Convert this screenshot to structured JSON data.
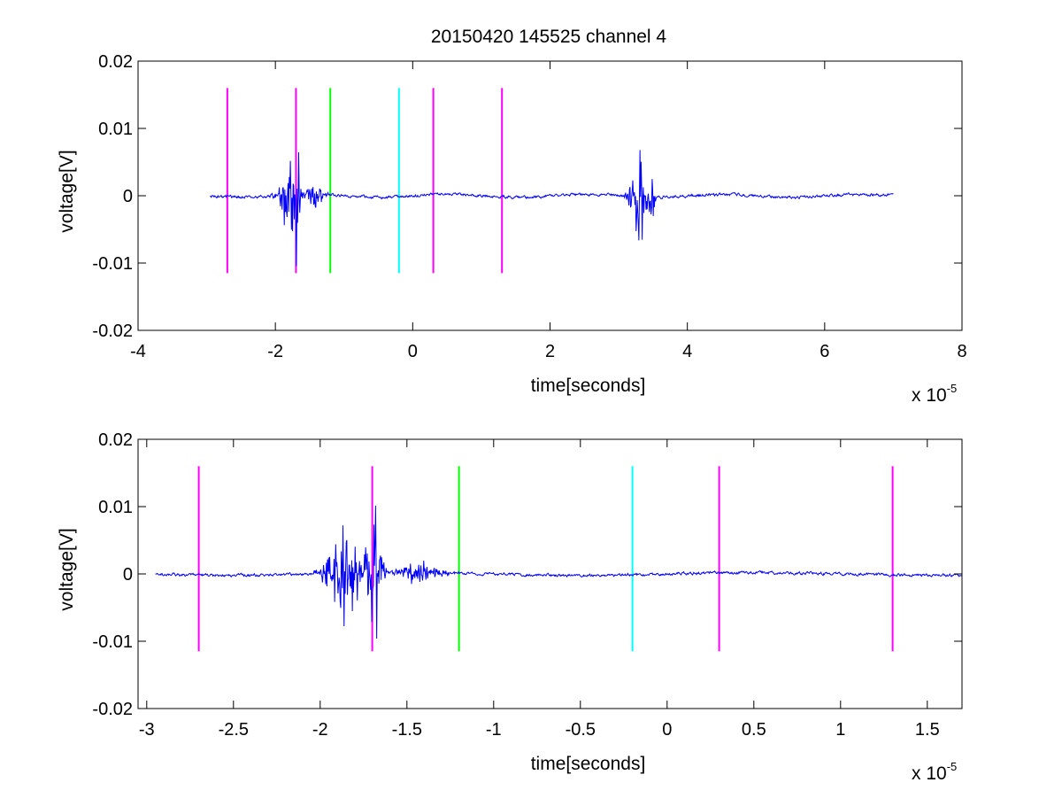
{
  "chart_data": [
    {
      "type": "line",
      "title": "20150420 145525 channel 4",
      "xlabel": "time[seconds]",
      "ylabel": "voltage[V]",
      "x_multiplier_label": "x 10",
      "x_multiplier_exponent": "-5",
      "xlim": [
        -4,
        8
      ],
      "ylim": [
        -0.02,
        0.02
      ],
      "xticks": [
        -4,
        -2,
        0,
        2,
        4,
        6,
        8
      ],
      "xtick_labels": [
        "-4",
        "-2",
        "0",
        "2",
        "4",
        "6",
        "8"
      ],
      "yticks": [
        -0.02,
        -0.01,
        0,
        0.01,
        0.02
      ],
      "ytick_labels": [
        "-0.02",
        "-0.01",
        "0",
        "0.01",
        "0.02"
      ],
      "grid": false,
      "series": [
        {
          "color": "#0000ff",
          "x_range": [
            -2.95,
            7.0
          ],
          "baseline_noise": 0.0004,
          "bursts": [
            {
              "center": -1.8,
              "width": 0.18,
              "amplitude": 0.007
            },
            {
              "center": -1.68,
              "width": 0.05,
              "amplitude": 0.013
            },
            {
              "center": -1.42,
              "width": 0.18,
              "amplitude": 0.003
            },
            {
              "center": 3.3,
              "width": 0.18,
              "amplitude": 0.008
            },
            {
              "center": 3.48,
              "width": 0.06,
              "amplitude": 0.005
            }
          ]
        }
      ],
      "vertical_markers": [
        {
          "x": -2.7,
          "color": "#ff00ff",
          "y_range": [
            -0.0115,
            0.016
          ]
        },
        {
          "x": -1.7,
          "color": "#ff00ff",
          "y_range": [
            -0.0115,
            0.016
          ]
        },
        {
          "x": -1.2,
          "color": "#00ff00",
          "y_range": [
            -0.0115,
            0.016
          ]
        },
        {
          "x": -0.2,
          "color": "#00ffff",
          "y_range": [
            -0.0115,
            0.016
          ]
        },
        {
          "x": 0.3,
          "color": "#ff00ff",
          "y_range": [
            -0.0115,
            0.016
          ]
        },
        {
          "x": 1.3,
          "color": "#ff00ff",
          "y_range": [
            -0.0115,
            0.016
          ]
        }
      ]
    },
    {
      "type": "line",
      "title": "",
      "xlabel": "time[seconds]",
      "ylabel": "voltage[V]",
      "x_multiplier_label": "x 10",
      "x_multiplier_exponent": "-5",
      "xlim": [
        -3.05,
        1.7
      ],
      "ylim": [
        -0.02,
        0.02
      ],
      "xticks": [
        -3,
        -2.5,
        -2,
        -1.5,
        -1,
        -0.5,
        0,
        0.5,
        1,
        1.5
      ],
      "xtick_labels": [
        "-3",
        "-2.5",
        "-2",
        "-1.5",
        "-1",
        "-0.5",
        "0",
        "0.5",
        "1",
        "1.5"
      ],
      "yticks": [
        -0.02,
        -0.01,
        0,
        0.01,
        0.02
      ],
      "ytick_labels": [
        "-0.02",
        "-0.01",
        "0",
        "0.01",
        "0.02"
      ],
      "grid": false,
      "series": [
        {
          "color": "#0000ff",
          "x_range": [
            -2.95,
            1.7
          ],
          "baseline_noise": 0.0004,
          "bursts": [
            {
              "center": -1.86,
              "width": 0.14,
              "amplitude": 0.008
            },
            {
              "center": -1.69,
              "width": 0.06,
              "amplitude": 0.012
            },
            {
              "center": -1.42,
              "width": 0.16,
              "amplitude": 0.002
            }
          ]
        }
      ],
      "vertical_markers": [
        {
          "x": -2.7,
          "color": "#ff00ff",
          "y_range": [
            -0.0115,
            0.016
          ]
        },
        {
          "x": -1.7,
          "color": "#ff00ff",
          "y_range": [
            -0.0115,
            0.016
          ]
        },
        {
          "x": -1.2,
          "color": "#00ff00",
          "y_range": [
            -0.0115,
            0.016
          ]
        },
        {
          "x": -0.2,
          "color": "#00ffff",
          "y_range": [
            -0.0115,
            0.016
          ]
        },
        {
          "x": 0.3,
          "color": "#ff00ff",
          "y_range": [
            -0.0115,
            0.016
          ]
        },
        {
          "x": 1.3,
          "color": "#ff00ff",
          "y_range": [
            -0.0115,
            0.016
          ]
        }
      ]
    }
  ]
}
